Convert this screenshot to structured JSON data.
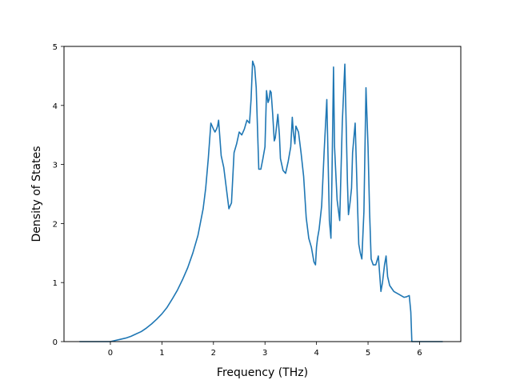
{
  "chart_data": {
    "type": "line",
    "title": "",
    "xlabel": "Frequency (THz)",
    "ylabel": "Density of States",
    "xlim": [
      -0.9,
      6.8
    ],
    "ylim": [
      0,
      5
    ],
    "xticks": [
      0,
      1,
      2,
      3,
      4,
      5,
      6
    ],
    "yticks": [
      0,
      1,
      2,
      3,
      4,
      5
    ],
    "grid": false,
    "legend": "none",
    "series": [
      {
        "color": "#1f77b4",
        "x": [
          -0.6,
          -0.3,
          0.0,
          0.1,
          0.2,
          0.3,
          0.4,
          0.5,
          0.6,
          0.7,
          0.8,
          0.9,
          1.0,
          1.1,
          1.2,
          1.3,
          1.4,
          1.5,
          1.6,
          1.7,
          1.8,
          1.85,
          1.9,
          1.95,
          2.0,
          2.03,
          2.06,
          2.08,
          2.1,
          2.15,
          2.2,
          2.3,
          2.35,
          2.4,
          2.45,
          2.5,
          2.55,
          2.6,
          2.65,
          2.7,
          2.73,
          2.76,
          2.8,
          2.83,
          2.88,
          2.92,
          2.96,
          3.0,
          3.03,
          3.06,
          3.08,
          3.1,
          3.12,
          3.15,
          3.18,
          3.2,
          3.25,
          3.28,
          3.3,
          3.35,
          3.4,
          3.45,
          3.5,
          3.53,
          3.55,
          3.58,
          3.6,
          3.65,
          3.7,
          3.75,
          3.8,
          3.85,
          3.9,
          3.95,
          3.98,
          4.0,
          4.02,
          4.05,
          4.1,
          4.15,
          4.2,
          4.25,
          4.28,
          4.3,
          4.33,
          4.35,
          4.38,
          4.4,
          4.45,
          4.5,
          4.55,
          4.6,
          4.62,
          4.65,
          4.68,
          4.7,
          4.75,
          4.8,
          4.82,
          4.85,
          4.88,
          4.92,
          4.96,
          5.0,
          5.03,
          5.06,
          5.1,
          5.15,
          5.2,
          5.25,
          5.28,
          5.32,
          5.35,
          5.38,
          5.42,
          5.5,
          5.6,
          5.7,
          5.75,
          5.8,
          5.83,
          5.85,
          6.0,
          6.45
        ],
        "values": [
          0.0,
          0.0,
          0.0,
          0.02,
          0.04,
          0.06,
          0.09,
          0.13,
          0.17,
          0.23,
          0.3,
          0.38,
          0.47,
          0.58,
          0.72,
          0.87,
          1.05,
          1.25,
          1.5,
          1.8,
          2.25,
          2.6,
          3.1,
          3.7,
          3.6,
          3.55,
          3.6,
          3.65,
          3.75,
          3.15,
          2.95,
          2.25,
          2.35,
          3.2,
          3.35,
          3.55,
          3.5,
          3.6,
          3.75,
          3.7,
          4.1,
          4.75,
          4.65,
          4.3,
          2.92,
          2.92,
          3.1,
          3.3,
          4.25,
          4.05,
          4.1,
          4.25,
          4.22,
          3.85,
          3.4,
          3.45,
          3.85,
          3.5,
          3.1,
          2.9,
          2.85,
          3.05,
          3.3,
          3.8,
          3.55,
          3.35,
          3.65,
          3.55,
          3.2,
          2.8,
          2.1,
          1.75,
          1.6,
          1.35,
          1.3,
          1.6,
          1.75,
          1.9,
          2.3,
          3.25,
          4.1,
          2.05,
          1.75,
          2.8,
          4.65,
          3.3,
          2.75,
          2.4,
          2.05,
          3.7,
          4.7,
          2.7,
          2.15,
          2.35,
          2.6,
          3.2,
          3.7,
          2.2,
          1.65,
          1.5,
          1.4,
          2.2,
          4.3,
          3.3,
          2.2,
          1.4,
          1.3,
          1.3,
          1.45,
          0.85,
          1.0,
          1.3,
          1.45,
          1.1,
          0.95,
          0.85,
          0.8,
          0.75,
          0.76,
          0.78,
          0.5,
          0.0,
          0.0,
          0.0
        ]
      }
    ]
  }
}
